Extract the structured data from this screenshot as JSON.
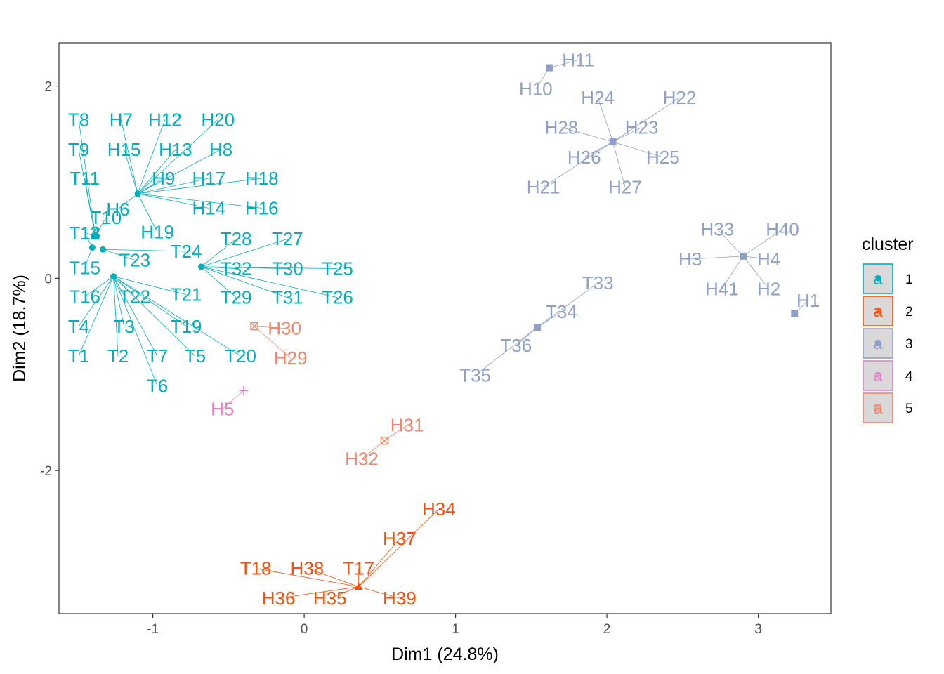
{
  "chart_data": {
    "type": "scatter",
    "xlabel": "Dim1 (24.8%)",
    "ylabel": "Dim2 (18.7%)",
    "xlim": [
      -1.62,
      3.48
    ],
    "ylim": [
      -3.49,
      2.45
    ],
    "x_ticks": [
      -1,
      0,
      1,
      2,
      3
    ],
    "y_ticks": [
      -2,
      0,
      2
    ],
    "grid": false,
    "legend": {
      "title": "cluster",
      "position": "right",
      "key_letter": "a",
      "entries": [
        {
          "label": "1",
          "color": "#00AFBB"
        },
        {
          "label": "2",
          "color": "#FC4E07"
        },
        {
          "label": "3",
          "color": "#8E9FC9"
        },
        {
          "label": "4",
          "color": "#E580C6"
        },
        {
          "label": "5",
          "color": "#F4846A"
        }
      ]
    },
    "clusters": [
      {
        "name": "1",
        "shape": "circle",
        "color": "#00AFBB",
        "points": [
          {
            "x": -1.1,
            "y": 0.88,
            "labels": [
              {
                "text": "H7",
                "x": -1.21,
                "y": 1.65
              },
              {
                "text": "H12",
                "x": -0.92,
                "y": 1.65
              },
              {
                "text": "H20",
                "x": -0.57,
                "y": 1.65
              },
              {
                "text": "H15",
                "x": -1.19,
                "y": 1.34
              },
              {
                "text": "H13",
                "x": -0.85,
                "y": 1.34
              },
              {
                "text": "H8",
                "x": -0.55,
                "y": 1.34
              },
              {
                "text": "H9",
                "x": -0.93,
                "y": 1.04
              },
              {
                "text": "H17",
                "x": -0.63,
                "y": 1.04
              },
              {
                "text": "H18",
                "x": -0.28,
                "y": 1.04
              },
              {
                "text": "H6",
                "x": -1.23,
                "y": 0.72
              },
              {
                "text": "H14",
                "x": -0.63,
                "y": 0.73
              },
              {
                "text": "H16",
                "x": -0.28,
                "y": 0.73
              },
              {
                "text": "H19",
                "x": -0.97,
                "y": 0.48
              }
            ]
          },
          {
            "x": -1.38,
            "y": 0.44,
            "labels": [
              {
                "text": "T8",
                "x": -1.49,
                "y": 1.65
              },
              {
                "text": "T9",
                "x": -1.49,
                "y": 1.34
              },
              {
                "text": "T11",
                "x": -1.45,
                "y": 1.04
              },
              {
                "text": "T10",
                "x": -1.31,
                "y": 0.63
              },
              {
                "text": "T12",
                "x": -1.45,
                "y": 0.47
              },
              {
                "text": "T14",
                "x": -1.45,
                "y": 0.47
              }
            ]
          },
          {
            "x": -1.4,
            "y": 0.32,
            "labels": [
              {
                "text": "T13",
                "x": -1.45,
                "y": 0.47
              },
              {
                "text": "T15",
                "x": -1.45,
                "y": 0.11
              }
            ]
          },
          {
            "x": -1.33,
            "y": 0.3,
            "labels": [
              {
                "text": "T23",
                "x": -1.12,
                "y": 0.19
              },
              {
                "text": "T24",
                "x": -0.78,
                "y": 0.28
              }
            ]
          },
          {
            "x": -1.26,
            "y": 0.02,
            "labels": [
              {
                "text": "T16",
                "x": -1.45,
                "y": -0.19
              },
              {
                "text": "T22",
                "x": -1.12,
                "y": -0.19
              },
              {
                "text": "T21",
                "x": -0.78,
                "y": -0.17
              },
              {
                "text": "T4",
                "x": -1.49,
                "y": -0.5
              },
              {
                "text": "T3",
                "x": -1.19,
                "y": -0.5
              },
              {
                "text": "T19",
                "x": -0.78,
                "y": -0.5
              },
              {
                "text": "T1",
                "x": -1.49,
                "y": -0.81
              },
              {
                "text": "T2",
                "x": -1.23,
                "y": -0.81
              },
              {
                "text": "T7",
                "x": -0.97,
                "y": -0.81
              },
              {
                "text": "T5",
                "x": -0.72,
                "y": -0.81
              },
              {
                "text": "T20",
                "x": -0.42,
                "y": -0.81
              },
              {
                "text": "T6",
                "x": -0.97,
                "y": -1.12
              }
            ]
          },
          {
            "x": -0.68,
            "y": 0.12,
            "labels": [
              {
                "text": "T28",
                "x": -0.45,
                "y": 0.41
              },
              {
                "text": "T27",
                "x": -0.11,
                "y": 0.41
              },
              {
                "text": "T32",
                "x": -0.45,
                "y": 0.1
              },
              {
                "text": "T30",
                "x": -0.11,
                "y": 0.1
              },
              {
                "text": "T25",
                "x": 0.22,
                "y": 0.1
              },
              {
                "text": "T29",
                "x": -0.45,
                "y": -0.2
              },
              {
                "text": "T31",
                "x": -0.11,
                "y": -0.2
              },
              {
                "text": "T26",
                "x": 0.22,
                "y": -0.2
              }
            ]
          }
        ]
      },
      {
        "name": "2",
        "shape": "triangle",
        "color": "#FC4E07",
        "points": [
          {
            "x": 0.36,
            "y": -3.21,
            "labels": [
              {
                "text": "H34",
                "x": 0.89,
                "y": -2.4
              },
              {
                "text": "H37",
                "x": 0.63,
                "y": -2.71
              },
              {
                "text": "T18",
                "x": -0.32,
                "y": -3.02
              },
              {
                "text": "H38",
                "x": 0.02,
                "y": -3.02
              },
              {
                "text": "T17",
                "x": 0.36,
                "y": -3.02
              },
              {
                "text": "H36",
                "x": -0.17,
                "y": -3.33
              },
              {
                "text": "H35",
                "x": 0.17,
                "y": -3.33
              },
              {
                "text": "H39",
                "x": 0.63,
                "y": -3.33
              }
            ]
          }
        ]
      },
      {
        "name": "3",
        "shape": "square",
        "color": "#8E9FC9",
        "points": [
          {
            "x": 1.62,
            "y": 2.19,
            "labels": [
              {
                "text": "H11",
                "x": 1.81,
                "y": 2.27
              },
              {
                "text": "H10",
                "x": 1.53,
                "y": 1.97
              }
            ]
          },
          {
            "x": 2.04,
            "y": 1.42,
            "labels": [
              {
                "text": "H24",
                "x": 1.94,
                "y": 1.88
              },
              {
                "text": "H22",
                "x": 2.48,
                "y": 1.88
              },
              {
                "text": "H28",
                "x": 1.7,
                "y": 1.57
              },
              {
                "text": "H23",
                "x": 2.23,
                "y": 1.57
              },
              {
                "text": "H26",
                "x": 1.85,
                "y": 1.26
              },
              {
                "text": "H25",
                "x": 2.37,
                "y": 1.26
              },
              {
                "text": "H21",
                "x": 1.58,
                "y": 0.95
              },
              {
                "text": "H27",
                "x": 2.12,
                "y": 0.95
              }
            ]
          },
          {
            "x": 2.9,
            "y": 0.23,
            "labels": [
              {
                "text": "H33",
                "x": 2.73,
                "y": 0.51
              },
              {
                "text": "H40",
                "x": 3.16,
                "y": 0.51
              },
              {
                "text": "H3",
                "x": 2.55,
                "y": 0.2
              },
              {
                "text": "H4",
                "x": 3.07,
                "y": 0.2
              },
              {
                "text": "H41",
                "x": 2.76,
                "y": -0.11
              },
              {
                "text": "H2",
                "x": 3.07,
                "y": -0.11
              }
            ]
          },
          {
            "x": 3.24,
            "y": -0.37,
            "labels": [
              {
                "text": "H1",
                "x": 3.33,
                "y": -0.23
              }
            ]
          },
          {
            "x": 1.54,
            "y": -0.51,
            "labels": [
              {
                "text": "T33",
                "x": 1.94,
                "y": -0.05
              },
              {
                "text": "T34",
                "x": 1.7,
                "y": -0.35
              },
              {
                "text": "T36",
                "x": 1.4,
                "y": -0.7
              },
              {
                "text": "T35",
                "x": 1.13,
                "y": -1.01
              }
            ]
          }
        ]
      },
      {
        "name": "4",
        "shape": "plus",
        "color": "#E580C6",
        "points": [
          {
            "x": -0.4,
            "y": -1.17,
            "labels": [
              {
                "text": "H5",
                "x": -0.54,
                "y": -1.36
              }
            ]
          }
        ]
      },
      {
        "name": "5",
        "shape": "square-cross",
        "color": "#F4846A",
        "points": [
          {
            "x": -0.33,
            "y": -0.5,
            "labels": [
              {
                "text": "H30",
                "x": -0.13,
                "y": -0.52
              },
              {
                "text": "H29",
                "x": -0.09,
                "y": -0.83
              }
            ]
          },
          {
            "x": 0.53,
            "y": -1.69,
            "labels": [
              {
                "text": "H31",
                "x": 0.68,
                "y": -1.53
              },
              {
                "text": "H32",
                "x": 0.38,
                "y": -1.88
              }
            ]
          }
        ]
      }
    ]
  }
}
